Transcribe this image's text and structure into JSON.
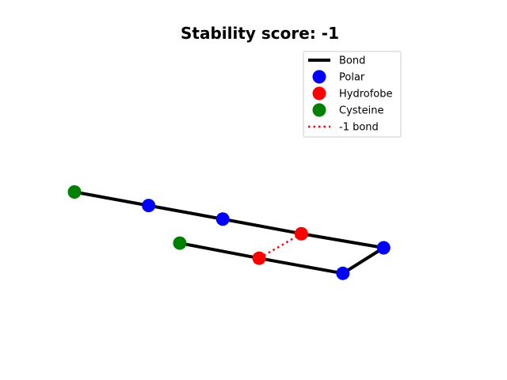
{
  "chart_data": {
    "type": "scatter",
    "title": "Stability score: -1",
    "axes_visible": false,
    "legend_placement": "top-right",
    "legend": [
      {
        "label": "Bond",
        "kind": "line",
        "color": "#000000",
        "style": "solid"
      },
      {
        "label": "Polar",
        "kind": "marker",
        "color": "#0000ff"
      },
      {
        "label": "Hydrofobe",
        "kind": "marker",
        "color": "#ff0000"
      },
      {
        "label": "Cysteine",
        "kind": "marker",
        "color": "#008000"
      },
      {
        "label": "-1 bond",
        "kind": "line",
        "color": "#ff0000",
        "style": "dotted"
      }
    ],
    "xlim": [
      -0.15,
      5.15
    ],
    "ylim": [
      -2.8,
      2.8
    ],
    "residues": [
      {
        "x": 0.0,
        "y": 0.0,
        "type": "Cysteine"
      },
      {
        "x": 1.0,
        "y": -0.26,
        "type": "Polar"
      },
      {
        "x": 2.0,
        "y": -0.52,
        "type": "Polar"
      },
      {
        "x": 3.06,
        "y": -0.8,
        "type": "Hydrofobe"
      },
      {
        "x": 4.17,
        "y": -1.07,
        "type": "Polar"
      },
      {
        "x": 3.62,
        "y": -1.56,
        "type": "Polar"
      },
      {
        "x": 2.49,
        "y": -1.27,
        "type": "Hydrofobe"
      },
      {
        "x": 1.42,
        "y": -0.98,
        "type": "Cysteine"
      }
    ],
    "special_bonds": [
      {
        "from": 3,
        "to": 6,
        "label": "-1 bond",
        "color": "#ff0000",
        "style": "dotted"
      }
    ]
  }
}
